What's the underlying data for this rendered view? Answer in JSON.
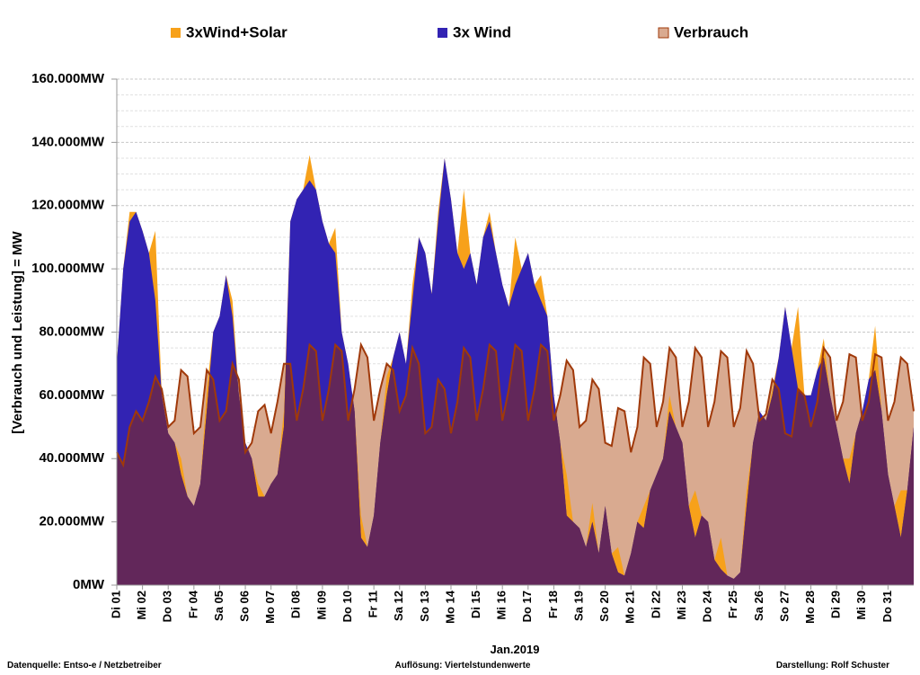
{
  "chart_data": {
    "type": "area",
    "ylabel": "[Verbrauch und Leistung] =  MW",
    "xlabel": "Jan.2019",
    "annotations": [
      "Datenquelle:  Entso-e  / Netzbetreiber",
      "Auflösung: Viertelstundenwerte",
      "Darstellung: Rolf Schuster"
    ],
    "overlap_color": "#62275a",
    "xlim": [
      0,
      31
    ],
    "xticks": [
      {
        "value": 0,
        "label": "Di 01"
      },
      {
        "value": 1,
        "label": "Mi 02"
      },
      {
        "value": 2,
        "label": "Do 03"
      },
      {
        "value": 3,
        "label": "Fr 04"
      },
      {
        "value": 4,
        "label": "Sa 05"
      },
      {
        "value": 5,
        "label": "So 06"
      },
      {
        "value": 6,
        "label": "Mo 07"
      },
      {
        "value": 7,
        "label": "Di 08"
      },
      {
        "value": 8,
        "label": "Mi 09"
      },
      {
        "value": 9,
        "label": "Do 10"
      },
      {
        "value": 10,
        "label": "Fr 11"
      },
      {
        "value": 11,
        "label": "Sa 12"
      },
      {
        "value": 12,
        "label": "So 13"
      },
      {
        "value": 13,
        "label": "Mo 14"
      },
      {
        "value": 14,
        "label": "Di 15"
      },
      {
        "value": 15,
        "label": "Mi 16"
      },
      {
        "value": 16,
        "label": "Do 17"
      },
      {
        "value": 17,
        "label": "Fr 18"
      },
      {
        "value": 18,
        "label": "Sa 19"
      },
      {
        "value": 19,
        "label": "So 20"
      },
      {
        "value": 20,
        "label": "Mo 21"
      },
      {
        "value": 21,
        "label": "Di 22"
      },
      {
        "value": 22,
        "label": "Mi 23"
      },
      {
        "value": 23,
        "label": "Do 24"
      },
      {
        "value": 24,
        "label": "Fr 25"
      },
      {
        "value": 25,
        "label": "Sa 26"
      },
      {
        "value": 26,
        "label": "So 27"
      },
      {
        "value": 27,
        "label": "Mo 28"
      },
      {
        "value": 28,
        "label": "Di 29"
      },
      {
        "value": 29,
        "label": "Mi 30"
      },
      {
        "value": 30,
        "label": "Do 31"
      }
    ],
    "ylim": [
      0,
      160000
    ],
    "yticks": [
      {
        "value": 0,
        "label": "0MW"
      },
      {
        "value": 20000,
        "label": "20.000MW"
      },
      {
        "value": 40000,
        "label": "40.000MW"
      },
      {
        "value": 60000,
        "label": "60.000MW"
      },
      {
        "value": 80000,
        "label": "80.000MW"
      },
      {
        "value": 100000,
        "label": "100.000MW"
      },
      {
        "value": 120000,
        "label": "120.000MW"
      },
      {
        "value": 140000,
        "label": "140.000MW"
      },
      {
        "value": 160000,
        "label": "160.000MW"
      }
    ],
    "grid": true,
    "x": [
      0,
      0.25,
      0.5,
      0.75,
      1,
      1.25,
      1.5,
      1.75,
      2,
      2.25,
      2.5,
      2.75,
      3,
      3.25,
      3.5,
      3.75,
      4,
      4.25,
      4.5,
      4.75,
      5,
      5.25,
      5.5,
      5.75,
      6,
      6.25,
      6.5,
      6.75,
      7,
      7.25,
      7.5,
      7.75,
      8,
      8.25,
      8.5,
      8.75,
      9,
      9.25,
      9.5,
      9.75,
      10,
      10.25,
      10.5,
      10.75,
      11,
      11.25,
      11.5,
      11.75,
      12,
      12.25,
      12.5,
      12.75,
      13,
      13.25,
      13.5,
      13.75,
      14,
      14.25,
      14.5,
      14.75,
      15,
      15.25,
      15.5,
      15.75,
      16,
      16.25,
      16.5,
      16.75,
      17,
      17.25,
      17.5,
      17.75,
      18,
      18.25,
      18.5,
      18.75,
      19,
      19.25,
      19.5,
      19.75,
      20,
      20.25,
      20.5,
      20.75,
      21,
      21.25,
      21.5,
      21.75,
      22,
      22.25,
      22.5,
      22.75,
      23,
      23.25,
      23.5,
      23.75,
      24,
      24.25,
      24.5,
      24.75,
      25,
      25.25,
      25.5,
      25.75,
      26,
      26.25,
      26.5,
      26.75,
      27,
      27.25,
      27.5,
      27.75,
      28,
      28.25,
      28.5,
      28.75,
      29,
      29.25,
      29.5,
      29.75,
      30,
      30.25,
      30.5,
      30.75,
      31
    ],
    "series": [
      {
        "name": "3xWind+Solar",
        "color": "#f7a11a",
        "values": [
          70000,
          100000,
          118000,
          118000,
          112000,
          105000,
          112000,
          60000,
          48000,
          45000,
          40000,
          28000,
          25000,
          32000,
          62000,
          80000,
          85000,
          98000,
          90000,
          60000,
          45000,
          40000,
          32000,
          28000,
          32000,
          35000,
          55000,
          115000,
          122000,
          125000,
          136000,
          125000,
          115000,
          108000,
          113000,
          80000,
          70000,
          55000,
          22000,
          12000,
          22000,
          45000,
          66000,
          72000,
          80000,
          70000,
          95000,
          110000,
          105000,
          92000,
          118000,
          135000,
          122000,
          105000,
          125000,
          105000,
          95000,
          110000,
          118000,
          105000,
          95000,
          88000,
          110000,
          100000,
          105000,
          95000,
          98000,
          85000,
          60000,
          45000,
          35000,
          20000,
          18000,
          12000,
          26000,
          10000,
          25000,
          10000,
          12000,
          3000,
          10000,
          20000,
          25000,
          30000,
          35000,
          40000,
          60000,
          50000,
          45000,
          25000,
          30000,
          22000,
          20000,
          8000,
          15000,
          3000,
          2000,
          4000,
          30000,
          45000,
          55000,
          52000,
          62000,
          72000,
          88000,
          75000,
          88000,
          60000,
          60000,
          68000,
          78000,
          60000,
          50000,
          40000,
          40000,
          48000,
          55000,
          65000,
          82000,
          55000,
          35000,
          25000,
          30000,
          30000,
          50000
        ]
      },
      {
        "name": "3x Wind",
        "color": "#3223b3",
        "values": [
          70000,
          100000,
          115000,
          118000,
          112000,
          105000,
          90000,
          60000,
          48000,
          45000,
          35000,
          28000,
          25000,
          32000,
          55000,
          80000,
          85000,
          98000,
          85000,
          60000,
          45000,
          40000,
          28000,
          28000,
          32000,
          35000,
          50000,
          115000,
          122000,
          125000,
          128000,
          125000,
          115000,
          108000,
          105000,
          80000,
          70000,
          55000,
          15000,
          12000,
          22000,
          45000,
          60000,
          72000,
          80000,
          70000,
          90000,
          110000,
          105000,
          92000,
          115000,
          135000,
          122000,
          105000,
          100000,
          105000,
          95000,
          110000,
          115000,
          105000,
          95000,
          88000,
          95000,
          100000,
          105000,
          95000,
          90000,
          85000,
          60000,
          45000,
          22000,
          20000,
          18000,
          12000,
          20000,
          10000,
          25000,
          10000,
          4000,
          3000,
          10000,
          20000,
          18000,
          30000,
          35000,
          40000,
          55000,
          50000,
          45000,
          25000,
          15000,
          22000,
          20000,
          8000,
          5000,
          3000,
          2000,
          4000,
          25000,
          45000,
          55000,
          52000,
          60000,
          72000,
          88000,
          75000,
          62000,
          60000,
          60000,
          68000,
          72000,
          60000,
          50000,
          40000,
          32000,
          48000,
          55000,
          65000,
          68000,
          55000,
          35000,
          25000,
          15000,
          30000,
          50000
        ]
      },
      {
        "name": "Verbrauch",
        "color": "#d9aa90",
        "edge_color": "#a0390a",
        "values": [
          42000,
          38000,
          50000,
          55000,
          52000,
          58000,
          66000,
          62000,
          50000,
          52000,
          68000,
          66000,
          48000,
          50000,
          68000,
          65000,
          52000,
          55000,
          70000,
          65000,
          42000,
          45000,
          55000,
          57000,
          48000,
          58000,
          70000,
          70000,
          52000,
          62000,
          76000,
          74000,
          52000,
          62000,
          76000,
          74000,
          52000,
          62000,
          76000,
          72000,
          52000,
          62000,
          70000,
          68000,
          55000,
          60000,
          75000,
          70000,
          48000,
          50000,
          65000,
          62000,
          48000,
          58000,
          75000,
          72000,
          52000,
          62000,
          76000,
          74000,
          52000,
          62000,
          76000,
          74000,
          52000,
          62000,
          76000,
          74000,
          52000,
          60000,
          71000,
          68000,
          50000,
          52000,
          65000,
          62000,
          45000,
          44000,
          56000,
          55000,
          42000,
          50000,
          72000,
          70000,
          50000,
          58000,
          75000,
          72000,
          50000,
          58000,
          75000,
          72000,
          50000,
          58000,
          74000,
          72000,
          50000,
          56000,
          74000,
          70000,
          52000,
          54000,
          65000,
          62000,
          48000,
          47000,
          62000,
          60000,
          50000,
          58000,
          75000,
          72000,
          52000,
          58000,
          73000,
          72000,
          52000,
          58000,
          73000,
          72000,
          52000,
          58000,
          72000,
          70000,
          55000
        ]
      }
    ]
  }
}
